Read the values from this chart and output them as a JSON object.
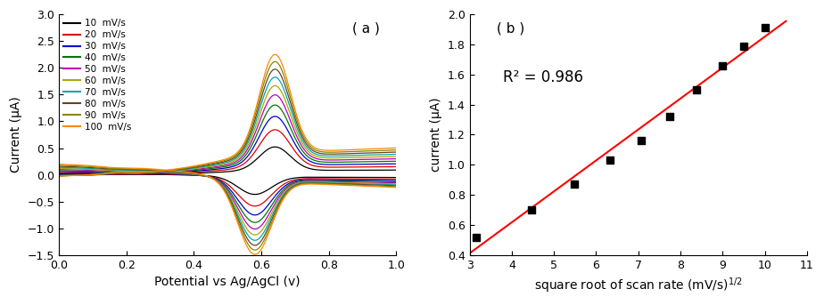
{
  "panel_a": {
    "title": "( a )",
    "xlabel": "Potential vs Ag/AgCl (v)",
    "ylabel": "Current (μA)",
    "xlim": [
      0.0,
      1.0
    ],
    "ylim": [
      -1.5,
      3.0
    ],
    "xticks": [
      0.0,
      0.2,
      0.4,
      0.6,
      0.8,
      1.0
    ],
    "yticks": [
      -1.5,
      -1.0,
      -0.5,
      0.0,
      0.5,
      1.0,
      1.5,
      2.0,
      2.5,
      3.0
    ],
    "scan_rates": [
      10,
      20,
      30,
      40,
      50,
      60,
      70,
      80,
      90,
      100
    ],
    "colors": [
      "#000000",
      "#dd0000",
      "#0000cc",
      "#007700",
      "#bb00bb",
      "#aaaa00",
      "#00aaaa",
      "#664422",
      "#888800",
      "#ff8800"
    ],
    "legend_labels": [
      "10  mV/s",
      "20  mV/s",
      "30  mV/s",
      "40  mV/s",
      "50  mV/s",
      "60  mV/s",
      "70  mV/s",
      "80  mV/s",
      "90  mV/s",
      "100  mV/s"
    ]
  },
  "panel_b": {
    "title": "( b )",
    "xlabel": "square root of scan rate (mV/s)$^{1/2}$",
    "ylabel": "current (μA)",
    "xlim": [
      3,
      11
    ],
    "ylim": [
      0.4,
      2.0
    ],
    "xticks": [
      3,
      4,
      5,
      6,
      7,
      8,
      9,
      10,
      11
    ],
    "yticks": [
      0.4,
      0.6,
      0.8,
      1.0,
      1.2,
      1.4,
      1.6,
      1.8,
      2.0
    ],
    "scatter_x": [
      3.16,
      4.47,
      5.48,
      6.32,
      7.07,
      7.75,
      8.37,
      9.0,
      9.49,
      10.0
    ],
    "scatter_y": [
      0.52,
      0.7,
      0.87,
      1.03,
      1.16,
      1.32,
      1.5,
      1.66,
      1.79,
      1.91
    ],
    "fit_x": [
      3.0,
      10.5
    ],
    "fit_slope": 0.2057,
    "fit_intercept": -0.205,
    "r_squared": "R² = 0.986",
    "line_color": "#ff0000",
    "marker_color": "#000000"
  }
}
